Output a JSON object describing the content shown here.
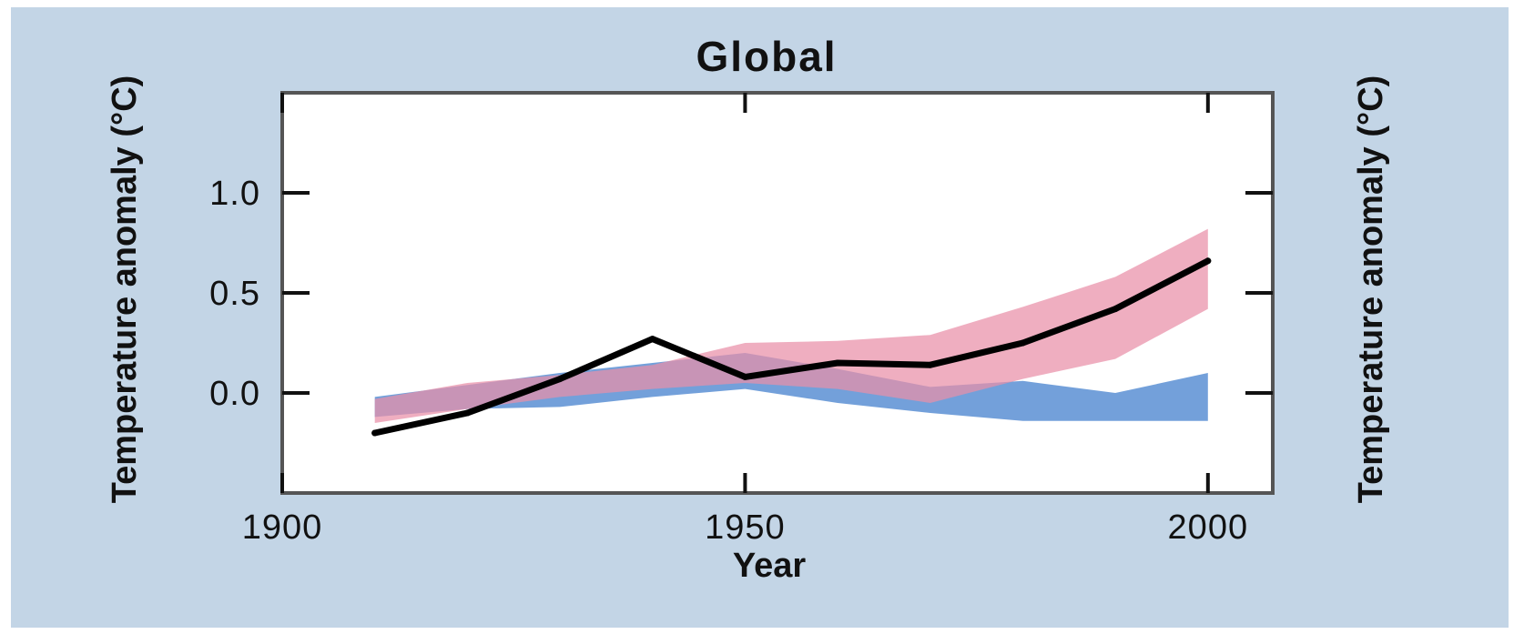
{
  "chart_data": {
    "type": "line",
    "title": "Global",
    "xlabel": "Year",
    "ylabel": "Temperature anomaly (°C)",
    "ylabel_right": "Temperature anomaly (°C)",
    "xlim": [
      1900,
      2007
    ],
    "ylim": [
      -0.5,
      1.5
    ],
    "xticks": [
      1900,
      1950,
      2000
    ],
    "xtick_labels": [
      "1900",
      "1950",
      "2000"
    ],
    "yticks": [
      0.0,
      0.5,
      1.0
    ],
    "ytick_labels": [
      "0.0",
      "0.5",
      "1.0"
    ],
    "grid": false,
    "legend": "none",
    "colors": {
      "background": "#c3d5e6",
      "observed": "#000000",
      "natural_band": "#6b9bd8",
      "combined_band": "#e98fa8",
      "overlap": "#9d6fa5"
    },
    "x": [
      1910,
      1920,
      1930,
      1940,
      1950,
      1960,
      1970,
      1980,
      1990,
      2000
    ],
    "series": [
      {
        "kind": "band",
        "color": "#6b9bd8",
        "lower": [
          -0.12,
          -0.08,
          -0.07,
          -0.02,
          0.02,
          -0.05,
          -0.1,
          -0.14,
          -0.14,
          -0.14
        ],
        "upper": [
          -0.02,
          0.04,
          0.1,
          0.15,
          0.2,
          0.12,
          0.03,
          0.06,
          0.0,
          0.1
        ]
      },
      {
        "kind": "band",
        "color": "#e98fa8",
        "lower": [
          -0.15,
          -0.08,
          -0.02,
          0.02,
          0.05,
          0.02,
          -0.05,
          0.07,
          0.17,
          0.42
        ],
        "upper": [
          -0.03,
          0.05,
          0.09,
          0.14,
          0.25,
          0.26,
          0.29,
          0.43,
          0.58,
          0.82
        ]
      },
      {
        "kind": "line",
        "color": "#000000",
        "values": [
          -0.2,
          -0.1,
          0.07,
          0.27,
          0.08,
          0.15,
          0.14,
          0.25,
          0.42,
          0.66
        ]
      }
    ]
  }
}
